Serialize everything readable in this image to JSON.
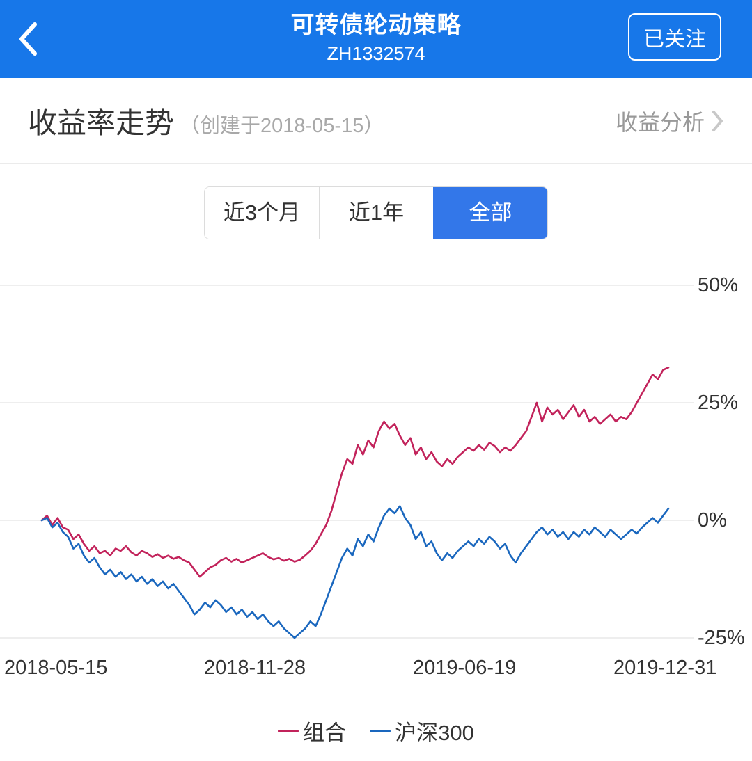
{
  "header": {
    "title": "可转债轮动策略",
    "subtitle": "ZH1332574",
    "follow_button": "已关注"
  },
  "section": {
    "title": "收益率走势",
    "created_note": "（创建于2018-05-15）",
    "analysis_link": "收益分析"
  },
  "tabs": {
    "items": [
      {
        "label": "近3个月"
      },
      {
        "label": "近1年"
      },
      {
        "label": "全部"
      }
    ],
    "active_index": 2
  },
  "colors": {
    "header_blue": "#1777E9",
    "active_tab_blue": "#3377E9",
    "portfolio_red": "#C2235B",
    "index_blue": "#1A67BE"
  },
  "chart_data": {
    "type": "line",
    "title": "收益率走势",
    "x_labels": [
      "2018-05-15",
      "2018-11-28",
      "2019-06-19",
      "2019-12-31"
    ],
    "y_ticks": [
      "50%",
      "25%",
      "0%",
      "-25%"
    ],
    "y_tick_values": [
      50,
      25,
      0,
      -25
    ],
    "ylim": [
      -28,
      55
    ],
    "grid": "horizontal",
    "legend_position": "bottom",
    "series": [
      {
        "name": "组合",
        "color": "#C2235B",
        "values": [
          0,
          1,
          -1,
          0.5,
          -1.5,
          -2,
          -4,
          -3,
          -5,
          -6.5,
          -5.5,
          -7,
          -6.5,
          -7.5,
          -6,
          -6.5,
          -5.5,
          -6.8,
          -7.5,
          -6.5,
          -7,
          -7.8,
          -7.2,
          -8,
          -7.5,
          -8.2,
          -7.8,
          -8.5,
          -9,
          -10.5,
          -12,
          -11,
          -10,
          -9.5,
          -8.5,
          -8,
          -8.8,
          -8.2,
          -9,
          -8.5,
          -8,
          -7.5,
          -7,
          -7.8,
          -8.3,
          -8,
          -8.6,
          -8.2,
          -8.8,
          -8.4,
          -7.5,
          -6.5,
          -5,
          -3,
          -1,
          2,
          6,
          10,
          13,
          12,
          16,
          14,
          17,
          15.5,
          19,
          21,
          19.5,
          20.5,
          18,
          16,
          17.5,
          14,
          15.5,
          13,
          14.5,
          12.5,
          11.5,
          13,
          12,
          13.5,
          14.5,
          15.5,
          14.8,
          16,
          15,
          16.5,
          15.8,
          14.5,
          15.5,
          14.8,
          16,
          17.5,
          19,
          22,
          25,
          21,
          24,
          22.5,
          23.5,
          21.5,
          23,
          24.5,
          22,
          23.5,
          21,
          22,
          20.5,
          21.5,
          22.5,
          21,
          22,
          21.5,
          23,
          25,
          27,
          29,
          31,
          30,
          32,
          32.5
        ]
      },
      {
        "name": "沪深300",
        "color": "#1A67BE",
        "values": [
          0,
          0.5,
          -1.5,
          -0.5,
          -2.5,
          -3.5,
          -6,
          -5,
          -7.5,
          -9,
          -8,
          -10,
          -11.5,
          -10.5,
          -12,
          -11,
          -12.5,
          -11.5,
          -13,
          -12,
          -13.5,
          -12.5,
          -14,
          -13,
          -14.5,
          -13.5,
          -15,
          -16.5,
          -18,
          -20,
          -19,
          -17.5,
          -18.5,
          -17,
          -18,
          -19.5,
          -18.5,
          -20,
          -19,
          -20.5,
          -19.5,
          -21,
          -20,
          -21.5,
          -22.5,
          -21.5,
          -23,
          -24,
          -25,
          -24,
          -23,
          -21.5,
          -22.5,
          -20,
          -17,
          -14,
          -11,
          -8,
          -6,
          -7.5,
          -4,
          -5.5,
          -3,
          -4.5,
          -1.5,
          1,
          2.5,
          1.5,
          3,
          0.5,
          -1,
          -4,
          -2.5,
          -5.5,
          -4.5,
          -7,
          -8.5,
          -7,
          -8,
          -6.5,
          -5.5,
          -4.5,
          -5.5,
          -4,
          -5,
          -3.5,
          -4.5,
          -6,
          -5,
          -7.5,
          -9,
          -7,
          -5.5,
          -4,
          -2.5,
          -1.5,
          -3,
          -2,
          -3.5,
          -2.5,
          -4,
          -2.5,
          -3.5,
          -2,
          -3,
          -1.5,
          -2.5,
          -3.5,
          -2,
          -3,
          -4,
          -3,
          -2,
          -2.8,
          -1.5,
          -0.5,
          0.5,
          -0.5,
          1,
          2.5
        ]
      }
    ]
  }
}
